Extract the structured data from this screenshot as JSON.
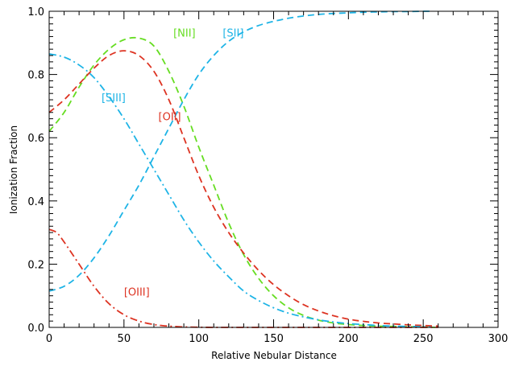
{
  "chart_data": {
    "type": "line",
    "title": "",
    "xlabel": "Relative Nebular Distance",
    "ylabel": "Ionization Fraction",
    "xlim": [
      0,
      300
    ],
    "ylim": [
      0,
      1.0
    ],
    "xticks": [
      0,
      50,
      100,
      150,
      200,
      250,
      300
    ],
    "yticks": [
      0.0,
      0.2,
      0.4,
      0.6,
      0.8,
      1.0
    ],
    "xtick_labels": [
      "0",
      "50",
      "100",
      "150",
      "200",
      "250",
      "300"
    ],
    "ytick_labels": [
      "0.0",
      "0.2",
      "0.4",
      "0.6",
      "0.8",
      "1.0"
    ],
    "grid": false,
    "series": [
      {
        "name": "[NII]",
        "color": "#66dd22",
        "style": "dashed",
        "label_at": [
          83,
          0.92
        ],
        "x": [
          0,
          10,
          20,
          30,
          40,
          50,
          60,
          70,
          80,
          90,
          100,
          110,
          120,
          130,
          140,
          150,
          160,
          170,
          180,
          190,
          200,
          210,
          220,
          230,
          240,
          250,
          258
        ],
        "y": [
          0.62,
          0.68,
          0.76,
          0.83,
          0.88,
          0.91,
          0.915,
          0.89,
          0.81,
          0.7,
          0.57,
          0.45,
          0.33,
          0.23,
          0.155,
          0.1,
          0.062,
          0.038,
          0.023,
          0.014,
          0.009,
          0.006,
          0.004,
          0.003,
          0.002,
          0.001,
          0.0
        ]
      },
      {
        "name": "[OII]",
        "color": "#dd3322",
        "style": "dashed",
        "label_at": [
          73,
          0.655
        ],
        "x": [
          0,
          10,
          20,
          30,
          40,
          50,
          60,
          70,
          80,
          90,
          100,
          110,
          120,
          130,
          140,
          150,
          160,
          170,
          180,
          190,
          200,
          210,
          220,
          230,
          240,
          250,
          260
        ],
        "y": [
          0.68,
          0.72,
          0.77,
          0.82,
          0.86,
          0.875,
          0.86,
          0.81,
          0.72,
          0.6,
          0.48,
          0.38,
          0.3,
          0.235,
          0.18,
          0.135,
          0.1,
          0.072,
          0.052,
          0.037,
          0.026,
          0.019,
          0.014,
          0.011,
          0.008,
          0.006,
          0.004
        ]
      },
      {
        "name": "[SII]",
        "color": "#1eb4e6",
        "style": "dashed",
        "label_at": [
          116,
          0.92
        ],
        "x": [
          0,
          10,
          20,
          30,
          40,
          50,
          60,
          70,
          80,
          90,
          100,
          110,
          120,
          130,
          140,
          150,
          160,
          170,
          180,
          190,
          200,
          210,
          220,
          230,
          240,
          250,
          255
        ],
        "y": [
          0.115,
          0.13,
          0.165,
          0.22,
          0.29,
          0.37,
          0.45,
          0.54,
          0.63,
          0.72,
          0.8,
          0.86,
          0.905,
          0.935,
          0.955,
          0.968,
          0.978,
          0.985,
          0.99,
          0.993,
          0.995,
          0.997,
          0.998,
          0.999,
          0.999,
          1.0,
          1.0
        ]
      },
      {
        "name": "[SIII]",
        "color": "#1eb4e6",
        "style": "dashdot",
        "label_at": [
          35,
          0.715
        ],
        "x": [
          0,
          10,
          20,
          30,
          40,
          50,
          60,
          70,
          80,
          90,
          100,
          110,
          120,
          130,
          140,
          150,
          160,
          170,
          180,
          190,
          200,
          210,
          220,
          230,
          240,
          250,
          255
        ],
        "y": [
          0.865,
          0.855,
          0.83,
          0.79,
          0.73,
          0.66,
          0.58,
          0.5,
          0.42,
          0.34,
          0.27,
          0.21,
          0.16,
          0.115,
          0.085,
          0.062,
          0.045,
          0.033,
          0.024,
          0.017,
          0.012,
          0.009,
          0.006,
          0.004,
          0.003,
          0.002,
          0.001
        ]
      },
      {
        "name": "[OIII]",
        "color": "#dd3322",
        "style": "dashdot",
        "label_at": [
          50,
          0.1
        ],
        "x": [
          0,
          5,
          10,
          20,
          30,
          40,
          50,
          60,
          70,
          80,
          90,
          100,
          110,
          120,
          140,
          160,
          200,
          260
        ],
        "y": [
          0.31,
          0.3,
          0.27,
          0.2,
          0.13,
          0.075,
          0.04,
          0.02,
          0.009,
          0.004,
          0.0015,
          0.0005,
          0.0,
          0.0,
          0.0,
          0.0,
          0.0,
          0.0
        ]
      }
    ],
    "labels": {
      "nii": "[NII]",
      "oii": "[OII]",
      "sii": "[SII]",
      "siii": "[SIII]",
      "oiii": "[OIII]"
    }
  }
}
